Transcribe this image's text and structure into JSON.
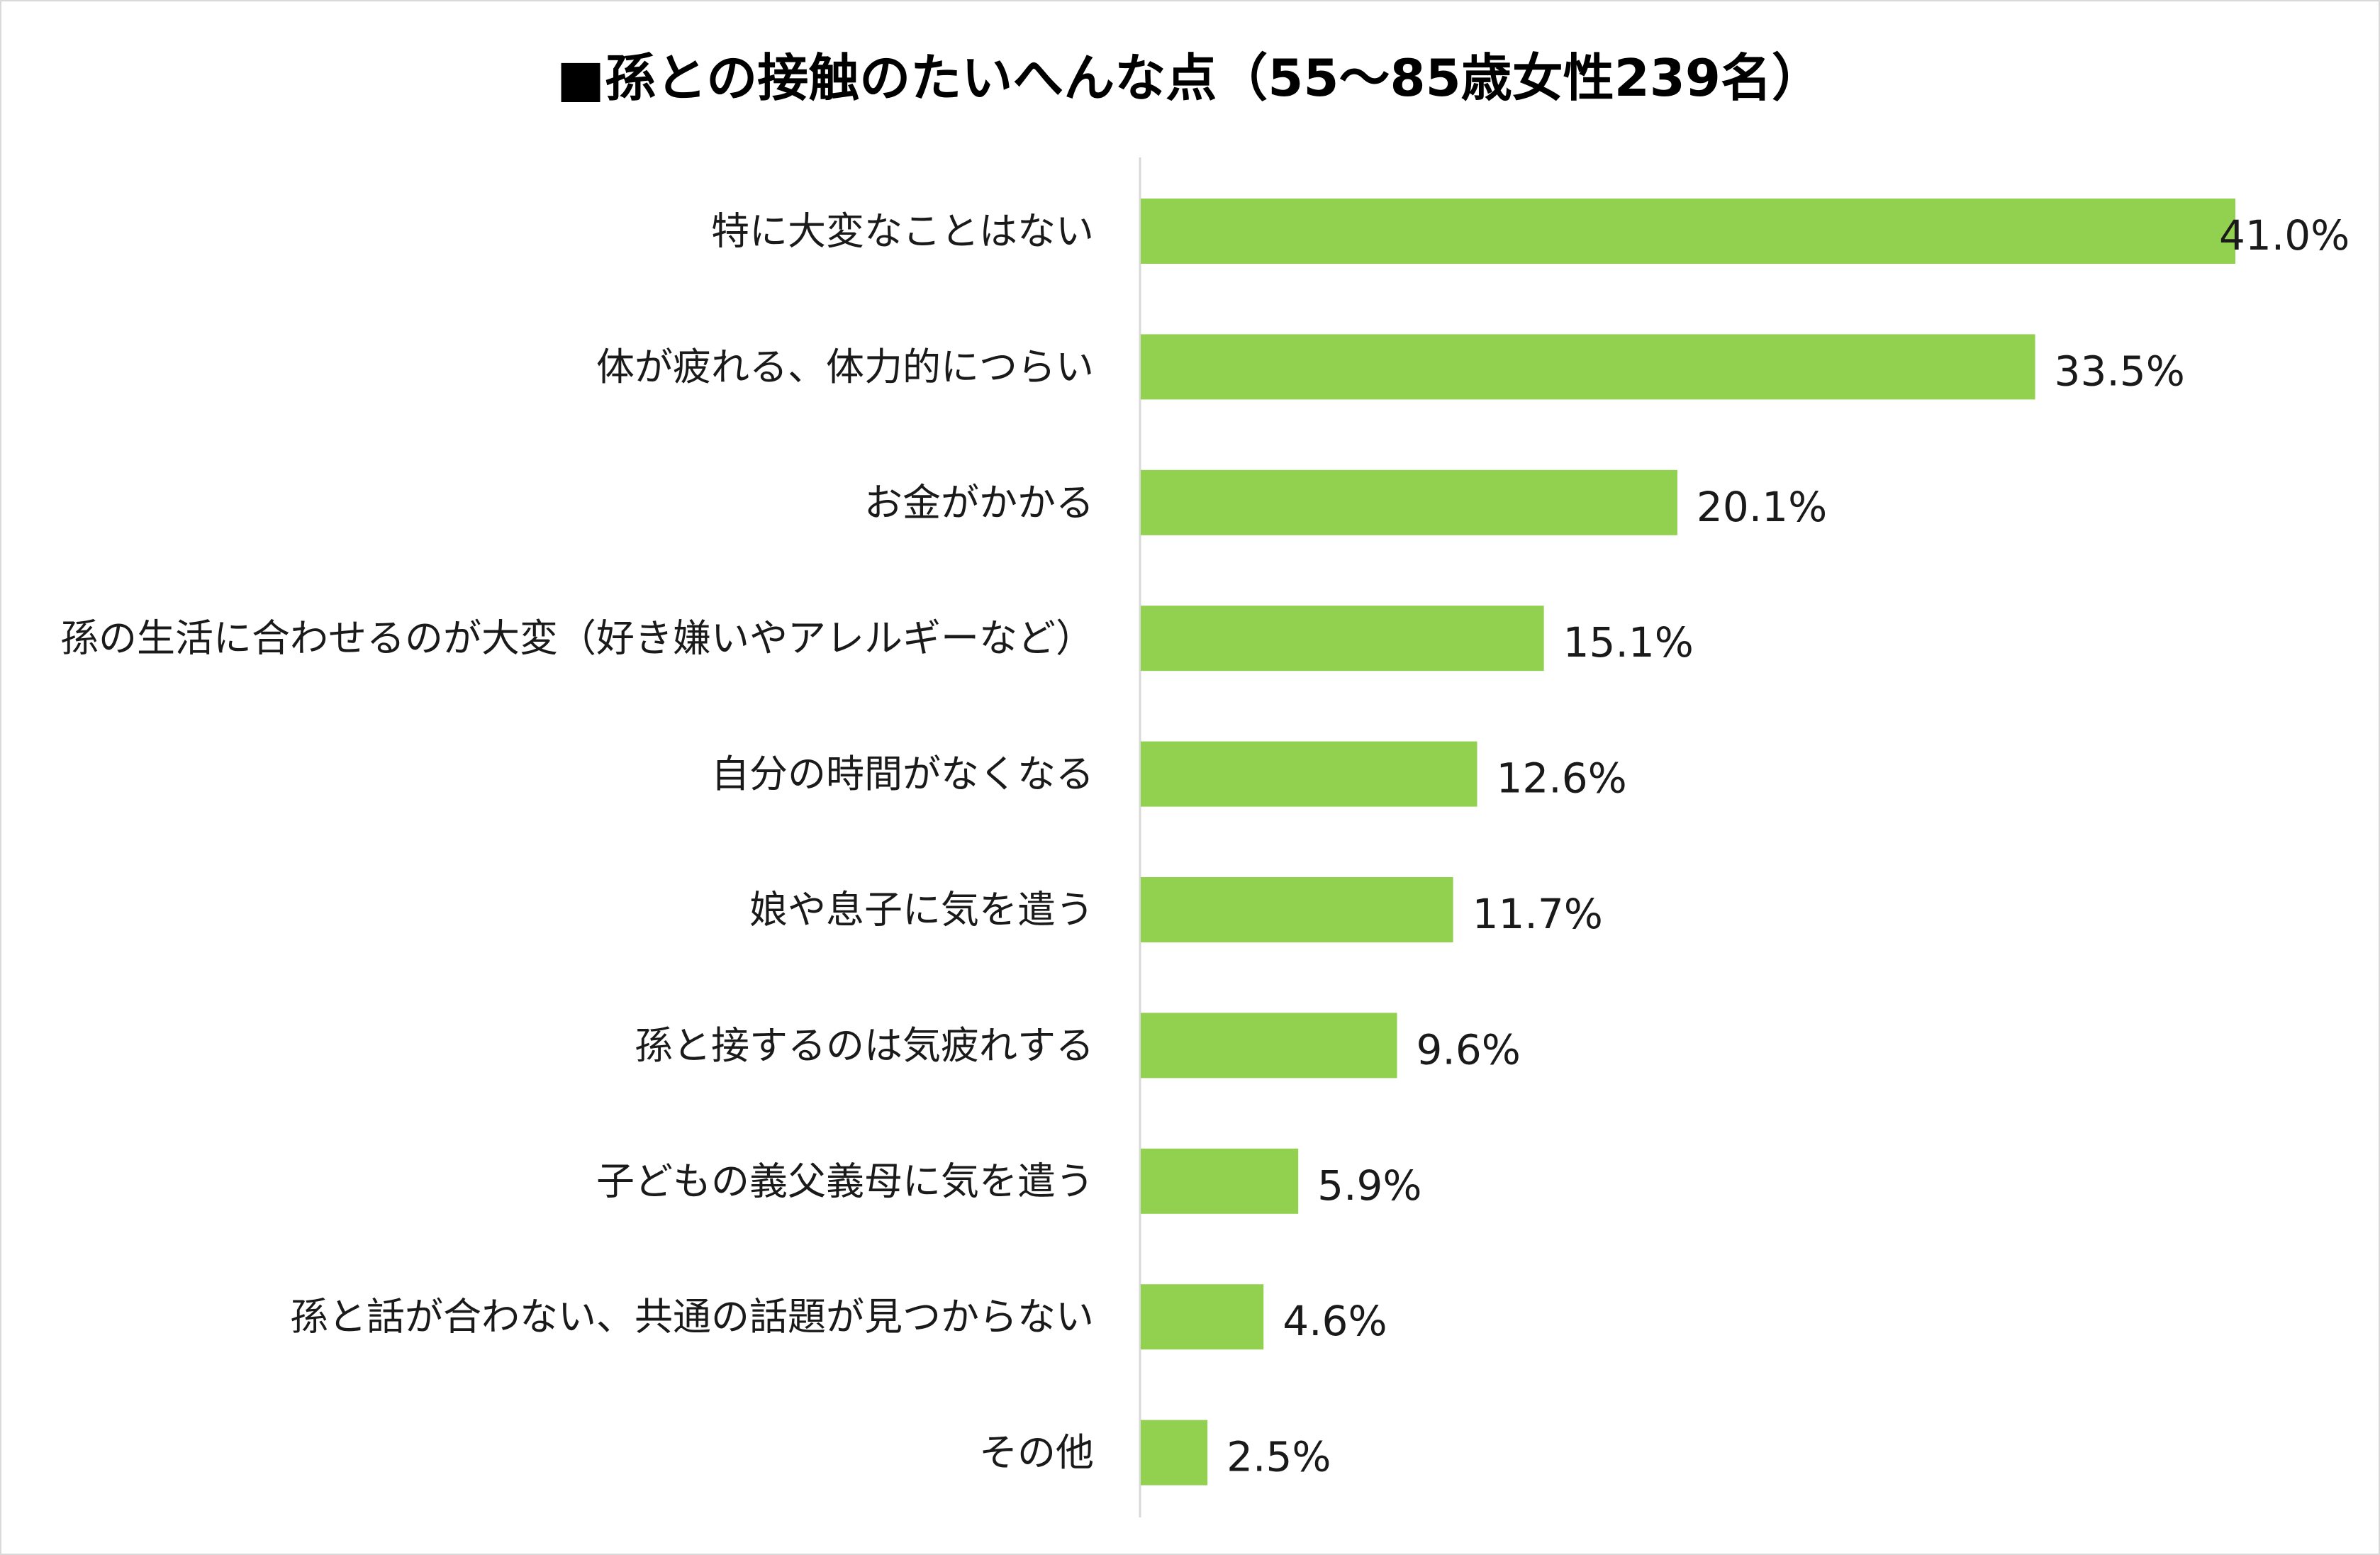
{
  "chart_data": {
    "type": "bar",
    "orientation": "horizontal",
    "title": "■孫との接触のたいへんな点（55～85歳女性239名）",
    "xlabel": "",
    "ylabel": "",
    "xlim": [
      0,
      41
    ],
    "grid": false,
    "legend": "none",
    "bar_color": "#92d050",
    "categories": [
      "特に大変なことはない",
      "体が疲れる、体力的につらい",
      "お金がかかる",
      "孫の生活に合わせるのが大変（好き嫌いやアレルギーなど）",
      "自分の時間がなくなる",
      "娘や息子に気を遣う",
      "孫と接するのは気疲れする",
      "子どもの義父義母に気を遣う",
      "孫と話が合わない、共通の話題が見つからない",
      "その他"
    ],
    "values": [
      41.0,
      33.5,
      20.1,
      15.1,
      12.6,
      11.7,
      9.6,
      5.9,
      4.6,
      2.5
    ],
    "value_labels": [
      "41.0%",
      "33.5%",
      "20.1%",
      "15.1%",
      "12.6%",
      "11.7%",
      "9.6%",
      "5.9%",
      "4.6%",
      "2.5%"
    ]
  }
}
